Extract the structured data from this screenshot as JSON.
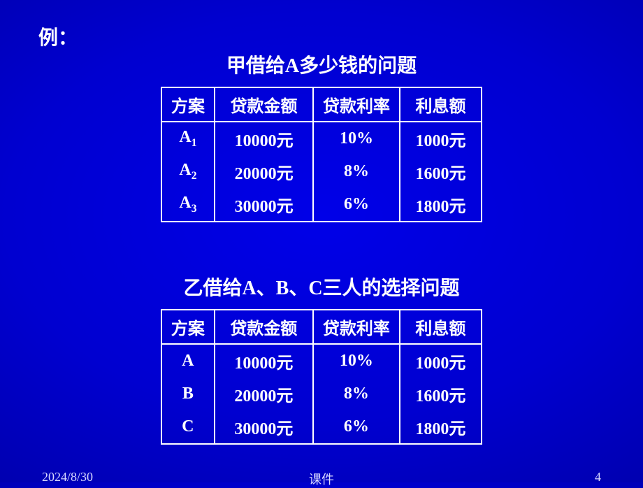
{
  "example_label": "例：",
  "section1": {
    "title": "甲借给A多少钱的问题",
    "columns": [
      "方案",
      "贷款金额",
      "贷款利率",
      "利息额"
    ],
    "rows": [
      {
        "plan_base": "A",
        "plan_sub": "1",
        "amount": "10000元",
        "rate": "10%",
        "interest": "1000元"
      },
      {
        "plan_base": "A",
        "plan_sub": "2",
        "amount": "20000元",
        "rate": "8%",
        "interest": "1600元"
      },
      {
        "plan_base": "A",
        "plan_sub": "3",
        "amount": "30000元",
        "rate": "6%",
        "interest": "1800元"
      }
    ]
  },
  "section2": {
    "title": "乙借给A、B、C三人的选择问题",
    "columns": [
      "方案",
      "贷款金额",
      "贷款利率",
      "利息额"
    ],
    "rows": [
      {
        "plan": "A",
        "amount": "10000元",
        "rate": "10%",
        "interest": "1000元"
      },
      {
        "plan": "B",
        "amount": "20000元",
        "rate": "8%",
        "interest": "1600元"
      },
      {
        "plan": "C",
        "amount": "30000元",
        "rate": "6%",
        "interest": "1800元"
      }
    ]
  },
  "footer": {
    "date": "2024/8/30",
    "center": "课件",
    "page": "4"
  },
  "style": {
    "text_color": "#ffffff",
    "border_color": "#ffffff",
    "title_fontsize": 28,
    "cell_fontsize": 24,
    "footer_fontsize": 18,
    "col_widths": {
      "plan": 100,
      "amount": 180,
      "rate": 160,
      "interest": 150
    }
  }
}
